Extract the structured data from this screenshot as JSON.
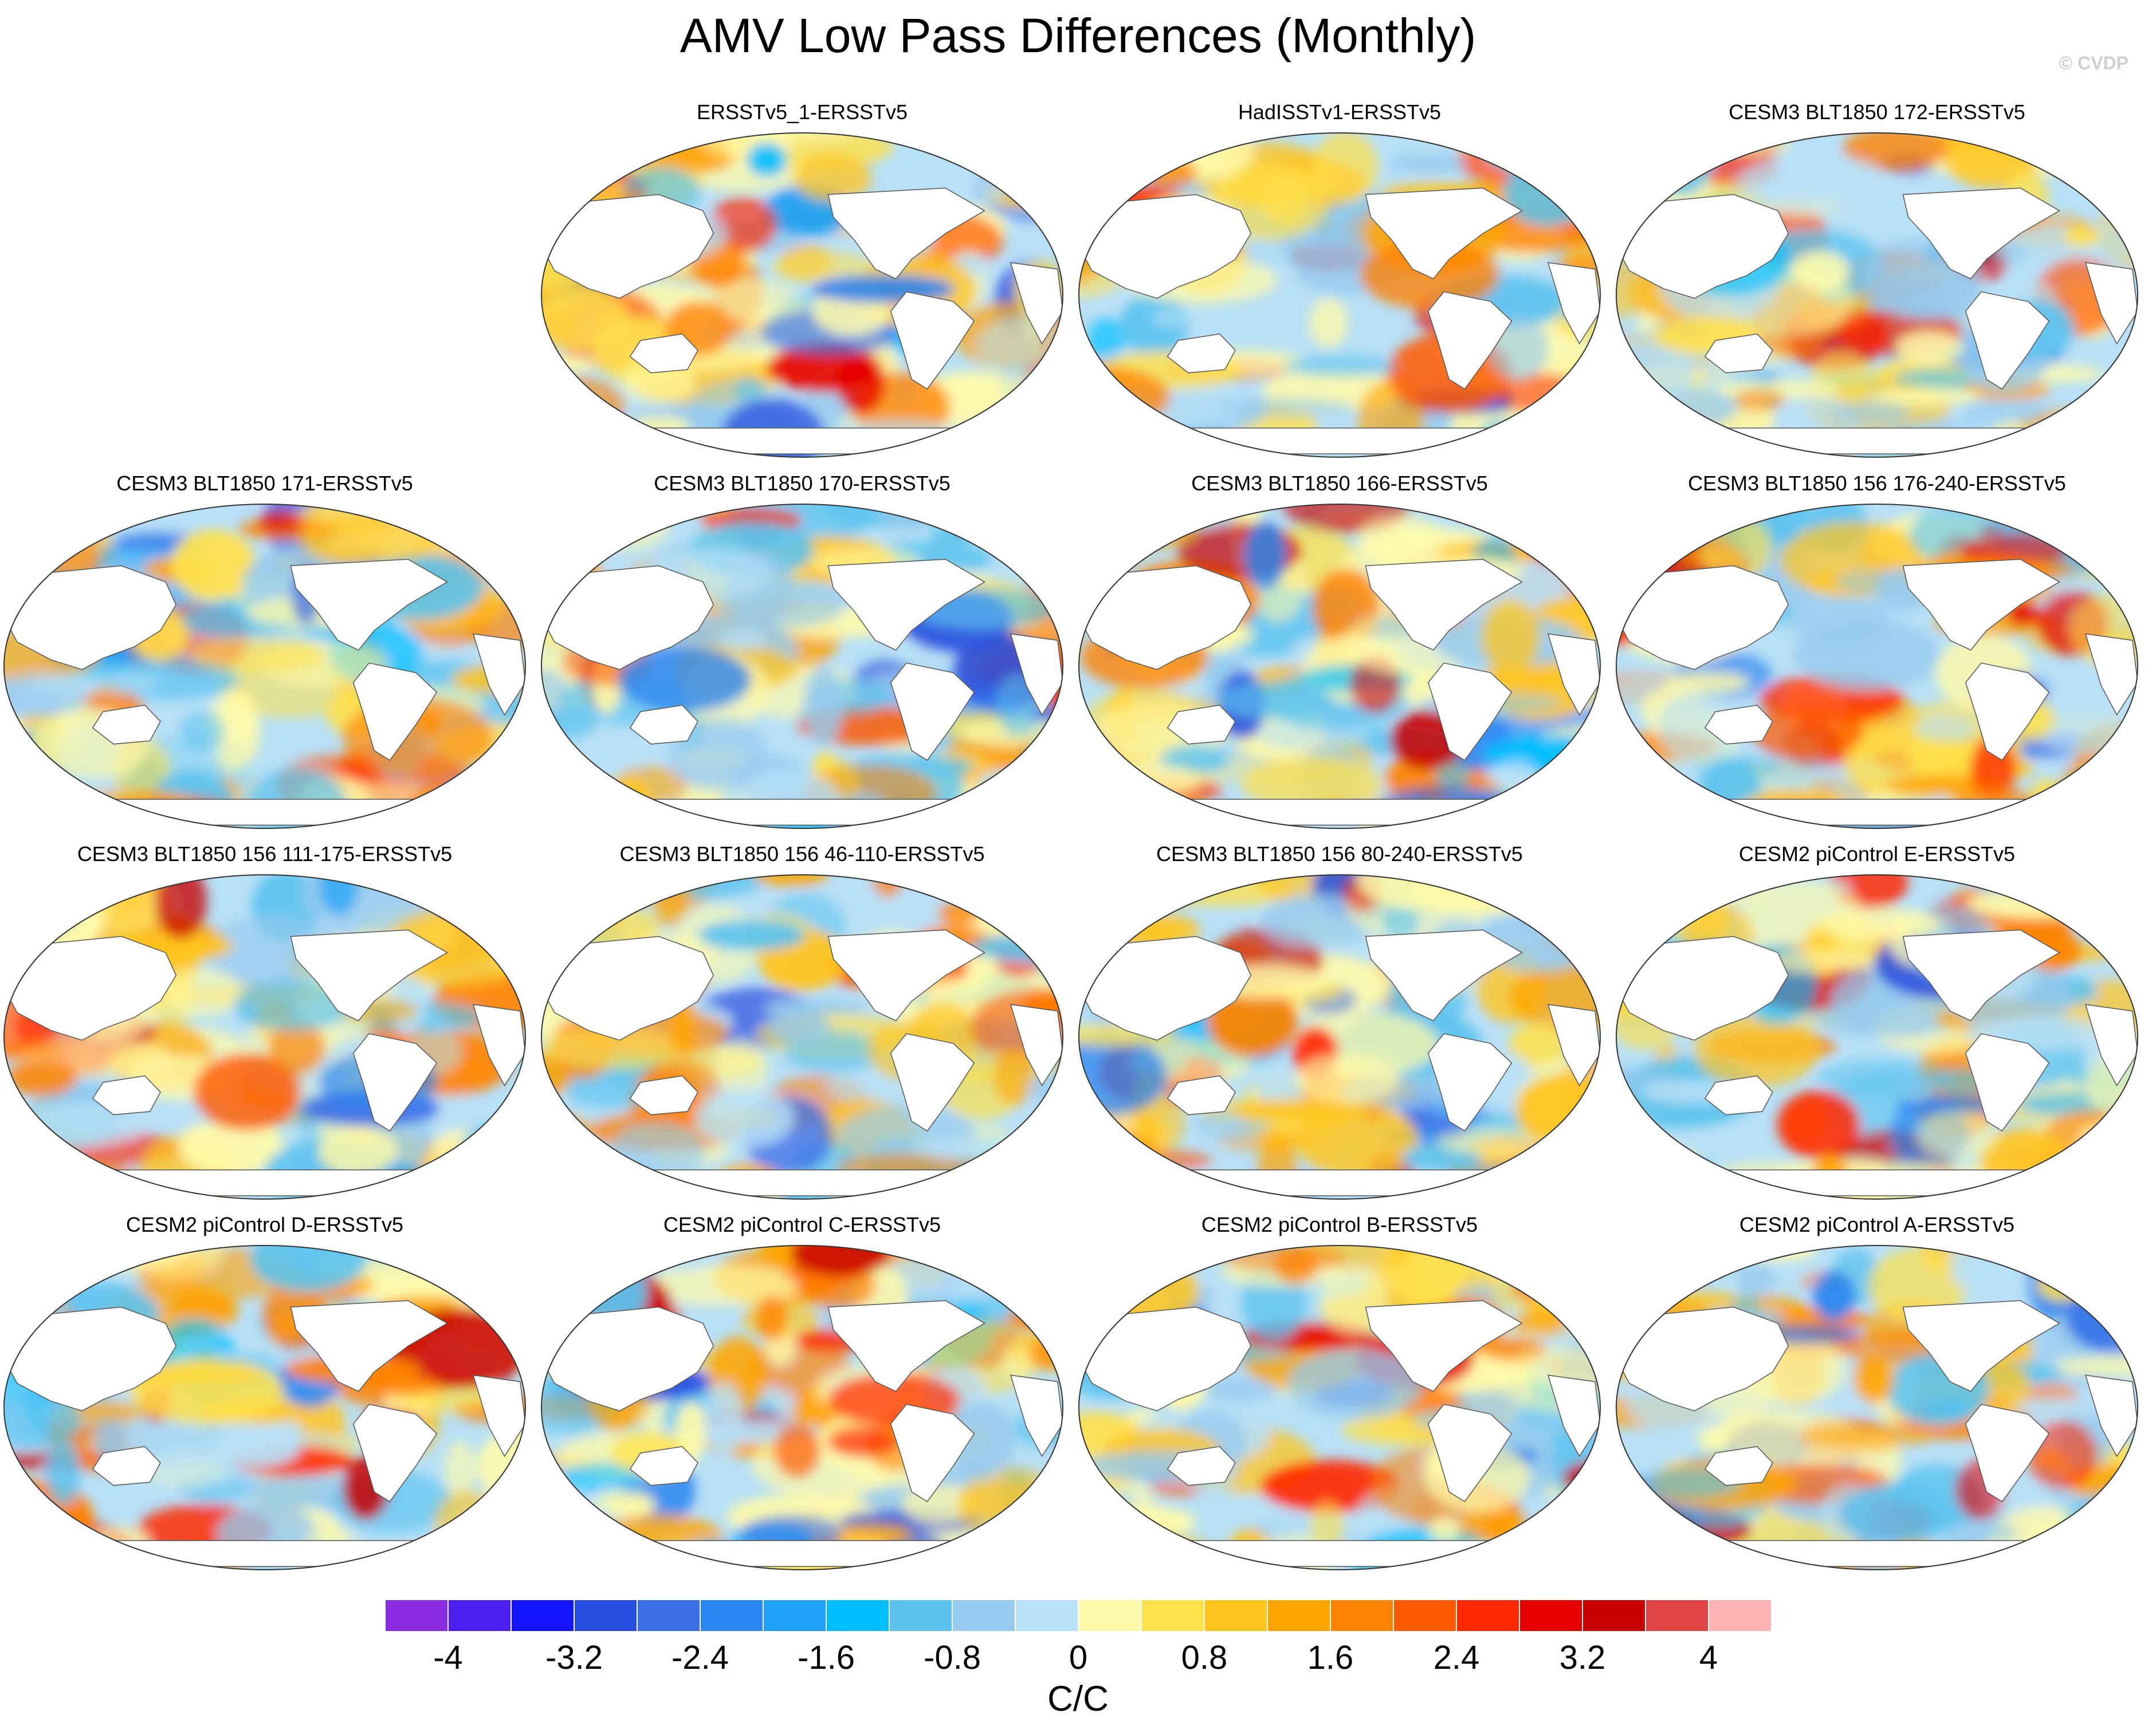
{
  "figure": {
    "title": "AMV Low Pass Differences (Monthly)",
    "copyright": "© CVDP"
  },
  "panels": [
    {
      "label": "ERSSTv5_1-ERSSTv5",
      "seed": 11
    },
    {
      "label": "HadISSTv1-ERSSTv5",
      "seed": 23
    },
    {
      "label": "CESM3 BLT1850 172-ERSSTv5",
      "seed": 37
    },
    {
      "label": "CESM3 BLT1850 171-ERSSTv5",
      "seed": 41
    },
    {
      "label": "CESM3 BLT1850 170-ERSSTv5",
      "seed": 53
    },
    {
      "label": "CESM3 BLT1850 166-ERSSTv5",
      "seed": 67
    },
    {
      "label": "CESM3 BLT1850 156 176-240-ERSSTv5",
      "seed": 71
    },
    {
      "label": "CESM3 BLT1850 156 111-175-ERSSTv5",
      "seed": 83
    },
    {
      "label": "CESM3 BLT1850 156 46-110-ERSSTv5",
      "seed": 97
    },
    {
      "label": "CESM3 BLT1850 156 80-240-ERSSTv5",
      "seed": 101
    },
    {
      "label": "CESM2 piControl E-ERSSTv5",
      "seed": 113
    },
    {
      "label": "CESM2 piControl D-ERSSTv5",
      "seed": 127
    },
    {
      "label": "CESM2 piControl C-ERSSTv5",
      "seed": 131
    },
    {
      "label": "CESM2 piControl B-ERSSTv5",
      "seed": 149
    },
    {
      "label": "CESM2 piControl A-ERSSTv5",
      "seed": 157
    }
  ],
  "colorbar": {
    "units": "C/C",
    "tick_labels": [
      "-4",
      "-3.2",
      "-2.4",
      "-1.6",
      "-0.8",
      "0",
      "0.8",
      "1.6",
      "2.4",
      "3.2",
      "4"
    ],
    "levels": [
      -4.4,
      -4,
      -3.6,
      -3.2,
      -2.8,
      -2.4,
      -2,
      -1.6,
      -1.2,
      -0.8,
      -0.4,
      0,
      0.4,
      0.8,
      1.2,
      1.6,
      2,
      2.4,
      2.8,
      3.2,
      3.6,
      4,
      4.4
    ],
    "colors": [
      "#8b2be2",
      "#4a1ff0",
      "#1414ff",
      "#2850e0",
      "#3c6ee6",
      "#2a86f0",
      "#1ea2f5",
      "#00bfff",
      "#5cc3ef",
      "#96caee",
      "#b8e0f6",
      "#fffaaa",
      "#ffe14c",
      "#ffc51e",
      "#ffa500",
      "#ff8200",
      "#ff5a00",
      "#ff2800",
      "#e60000",
      "#c80000",
      "#e04444",
      "#ffb4b4"
    ]
  }
}
